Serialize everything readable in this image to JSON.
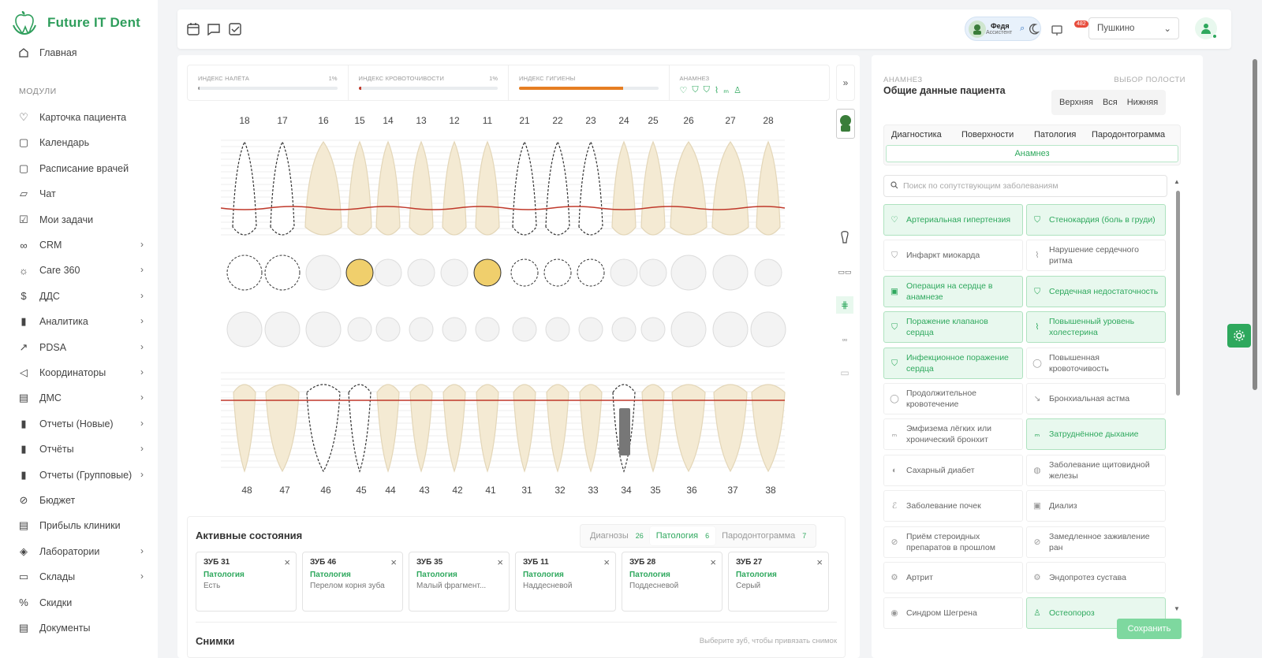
{
  "app": {
    "name": "Future IT Dent"
  },
  "nav": {
    "home": "Главная",
    "section": "МОДУЛИ",
    "items": [
      "Карточка пациента",
      "Календарь",
      "Расписание врачей",
      "Чат",
      "Мои задачи",
      "CRM",
      "Care 360",
      "ДДС",
      "Аналитика",
      "PDSA",
      "Координаторы",
      "ДМС",
      "Отчеты (Новые)",
      "Отчёты",
      "Отчеты (Групповые)",
      "Бюджет",
      "Прибыль клиники",
      "Лаборатории",
      "Склады",
      "Скидки",
      "Документы"
    ]
  },
  "topbar": {
    "user_name": "Федя",
    "user_role": "Ассистент",
    "notif_count": "482",
    "branch": "Пушкино"
  },
  "indices": {
    "plaque_title": "ИНДЕКС НАЛЁТА",
    "plaque_value": "1%",
    "bleed_title": "ИНДЕКС КРОВОТОЧИВОСТИ",
    "bleed_value": "1%",
    "hygiene_title": "ИНДЕКС ГИГИЕНЫ",
    "hygiene_level": 0.75,
    "anam_title": "АНАМНЕЗ"
  },
  "teeth": {
    "upper": [
      "18",
      "17",
      "16",
      "15",
      "14",
      "13",
      "12",
      "11",
      "21",
      "22",
      "23",
      "24",
      "25",
      "26",
      "27",
      "28"
    ],
    "lower": [
      "48",
      "47",
      "46",
      "45",
      "44",
      "43",
      "42",
      "41",
      "31",
      "32",
      "33",
      "34",
      "35",
      "36",
      "37",
      "38"
    ]
  },
  "active": {
    "title": "Активные состояния",
    "tabs": [
      {
        "label": "Диагнозы",
        "count": "26"
      },
      {
        "label": "Патология",
        "count": "6"
      },
      {
        "label": "Пародонтограмма",
        "count": "7"
      }
    ],
    "conditions": [
      {
        "tooth": "ЗУБ 31",
        "type": "Патология",
        "value": "Есть"
      },
      {
        "tooth": "ЗУБ 46",
        "type": "Патология",
        "value": "Перелом корня зуба"
      },
      {
        "tooth": "ЗУБ 35",
        "type": "Патология",
        "value": "Малый фрагмент..."
      },
      {
        "tooth": "ЗУБ 11",
        "type": "Патология",
        "value": "Наддесневой"
      },
      {
        "tooth": "ЗУБ 28",
        "type": "Патология",
        "value": "Поддесневой"
      },
      {
        "tooth": "ЗУБ 27",
        "type": "Патология",
        "value": "Серый"
      }
    ],
    "snapshots_title": "Снимки",
    "snapshots_hint": "Выберите зуб, чтобы привязать снимок"
  },
  "anamnesis": {
    "label": "АНАМНЕЗ",
    "title": "Общие данные пациента",
    "cavity_label": "ВЫБОР ПОЛОСТИ",
    "cavity": [
      "Верхняя",
      "Вся",
      "Нижняя"
    ],
    "tabs": [
      "Диагностика",
      "Поверхности",
      "Патология",
      "Пародонтограмма"
    ],
    "active_tab": "Анамнез",
    "search_placeholder": "Поиск по сопутствующим заболеваниям",
    "diseases": [
      {
        "label": "Артериальная гипертензия",
        "on": true
      },
      {
        "label": "Стенокардия (боль в груди)",
        "on": true
      },
      {
        "label": "Инфаркт миокарда",
        "on": false
      },
      {
        "label": "Нарушение сердечного ритма",
        "on": false
      },
      {
        "label": "Операция на сердце в анамнезе",
        "on": true
      },
      {
        "label": "Сердечная недостаточность",
        "on": true
      },
      {
        "label": "Поражение клапанов сердца",
        "on": true
      },
      {
        "label": "Повышенный уровень холестерина",
        "on": true
      },
      {
        "label": "Инфекционное поражение сердца",
        "on": true
      },
      {
        "label": "Повышенная кровоточивость",
        "on": false
      },
      {
        "label": "Продолжительное кровотечение",
        "on": false
      },
      {
        "label": "Бронхиальная астма",
        "on": false
      },
      {
        "label": "Эмфизема лёгких или хронический бронхит",
        "on": false
      },
      {
        "label": "Затруднённое дыхание",
        "on": true
      },
      {
        "label": "Сахарный диабет",
        "on": false
      },
      {
        "label": "Заболевание щитовидной железы",
        "on": false
      },
      {
        "label": "Заболевание почек",
        "on": false
      },
      {
        "label": "Диализ",
        "on": false
      },
      {
        "label": "Приём стероидных препаратов в прошлом",
        "on": false
      },
      {
        "label": "Замедленное заживление ран",
        "on": false
      },
      {
        "label": "Артрит",
        "on": false
      },
      {
        "label": "Эндопротез сустава",
        "on": false
      },
      {
        "label": "Синдром Шегрена",
        "on": false
      },
      {
        "label": "Остеопороз",
        "on": true
      }
    ],
    "save": "Сохранить"
  }
}
